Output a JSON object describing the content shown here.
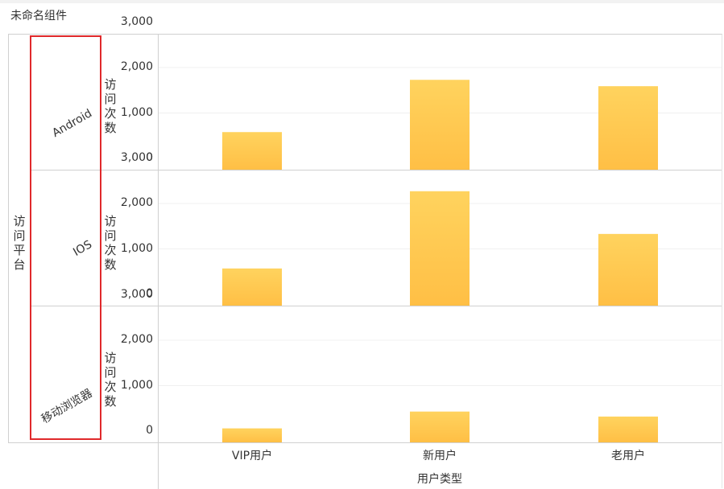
{
  "widget_title": "未命名组件",
  "chart_data": {
    "type": "bar",
    "row_dimension": "访问平台",
    "xlabel": "用户类型",
    "ylabel": "访问次数",
    "ylim": [
      0,
      3000
    ],
    "yticks": [
      "3,000",
      "2,000",
      "1,000",
      "0"
    ],
    "categories": [
      "VIP用户",
      "新用户",
      "老用户"
    ],
    "panels": [
      {
        "name": "Android",
        "values": [
          580,
          1730,
          1590
        ]
      },
      {
        "name": "IOS",
        "values": [
          570,
          2270,
          1330
        ]
      },
      {
        "name": "移动浏览器",
        "values": [
          60,
          430,
          320
        ]
      }
    ],
    "bar_color_top": "#ffd35e",
    "bar_color_bottom": "#ffbf45",
    "grid": true,
    "highlight_color": "#e0292b"
  }
}
